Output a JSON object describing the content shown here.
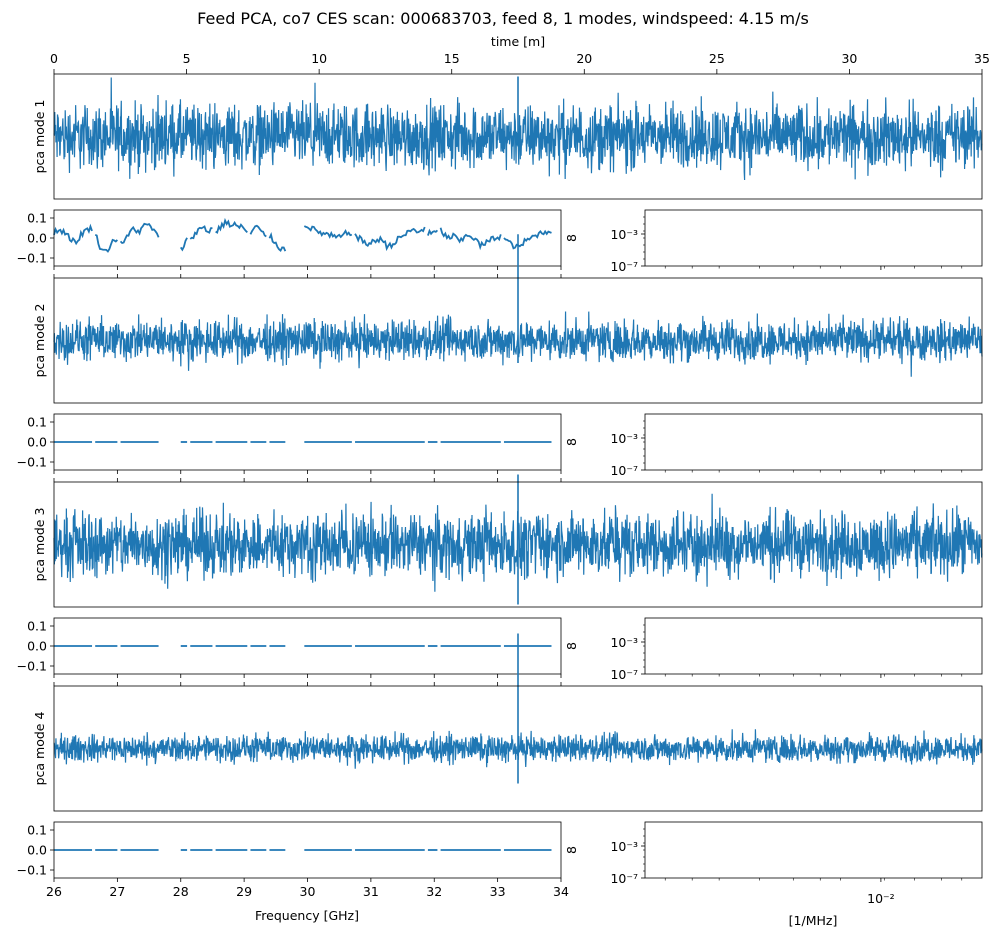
{
  "figure": {
    "title": "Feed PCA, co7 CES scan: 000683703, feed 8, 1 modes, windspeed: 4.15 m/s",
    "time_xlabel": "time [m]",
    "freq_xlabel": "Frequency [GHz]",
    "spec_xlabel": "[1/MHz]",
    "right_label": "8",
    "line_color": "#1f77b4"
  },
  "chart_data": {
    "type": "line",
    "time_axis": {
      "range": [
        0,
        35
      ],
      "ticks": [
        0,
        5,
        10,
        15,
        20,
        25,
        30,
        35
      ],
      "tick_labels": [
        "0",
        "5",
        "10",
        "15",
        "20",
        "25",
        "30",
        "35"
      ]
    },
    "freq_axis": {
      "range": [
        26,
        34
      ],
      "ticks": [
        26,
        27,
        28,
        29,
        30,
        31,
        32,
        33,
        34
      ],
      "tick_labels": [
        "26",
        "27",
        "28",
        "29",
        "30",
        "31",
        "32",
        "33",
        "34"
      ]
    },
    "freq_yaxis": {
      "range": [
        -0.14,
        0.14
      ],
      "ticks": [
        -0.1,
        0.0,
        0.1
      ],
      "tick_labels": [
        "−0.1",
        "0.0",
        "0.1"
      ]
    },
    "spec_axis": {
      "scale": "log",
      "xtick_label": "10⁻²",
      "ytick_labels": [
        "10⁻³",
        "10⁻⁷"
      ]
    },
    "spike_time_min": 17.5,
    "series": [
      {
        "name": "pca mode 1",
        "noise_amp": 0.38,
        "spike_height": 0.48,
        "spike_bottom": -0.08,
        "coef_segments": [
          [
            26.0,
            26.6,
            [
              0.03,
              0.04,
              0.03,
              0.0,
              -0.03,
              0.02,
              0.04,
              0.05
            ]
          ],
          [
            26.65,
            27.0,
            [
              0.02,
              -0.05,
              -0.07,
              -0.02,
              0.0
            ]
          ],
          [
            27.05,
            27.65,
            [
              -0.03,
              0.0,
              0.05,
              0.03,
              0.07,
              0.05,
              0.0
            ]
          ],
          [
            28.0,
            28.1,
            [
              -0.06,
              -0.01
            ]
          ],
          [
            28.15,
            28.5,
            [
              0.0,
              0.02,
              0.04,
              0.06,
              0.03,
              0.05
            ]
          ],
          [
            28.55,
            29.05,
            [
              0.03,
              0.05,
              0.07,
              0.08,
              0.06,
              0.07,
              0.05,
              0.06,
              0.02
            ]
          ],
          [
            29.1,
            29.35,
            [
              0.02,
              0.06,
              0.03,
              0.01
            ]
          ],
          [
            29.4,
            29.65,
            [
              0.01,
              -0.02,
              -0.05,
              -0.06
            ]
          ],
          [
            29.95,
            30.7,
            [
              0.07,
              0.05,
              0.03,
              0.02,
              0.01,
              0.0,
              0.02,
              0.03
            ]
          ],
          [
            30.75,
            31.85,
            [
              0.01,
              -0.01,
              -0.03,
              -0.02,
              0.0,
              -0.04,
              -0.03,
              0.0,
              0.02,
              0.04,
              0.03,
              0.05
            ]
          ],
          [
            31.9,
            32.05,
            [
              0.02,
              0.03
            ]
          ],
          [
            32.1,
            33.05,
            [
              0.04,
              0.0,
              0.01,
              -0.02,
              0.02,
              0.0,
              -0.04,
              -0.02,
              0.0,
              0.01
            ]
          ],
          [
            33.1,
            33.85,
            [
              0.0,
              -0.03,
              -0.05,
              -0.02,
              0.0,
              0.02,
              0.03,
              0.04
            ]
          ]
        ]
      },
      {
        "name": "pca mode 2",
        "noise_amp": 0.24,
        "spike_height": 0.85,
        "spike_bottom": -0.18,
        "coef_segments": [
          [
            26.0,
            26.6,
            [
              0.0,
              0.0
            ]
          ],
          [
            26.65,
            27.0,
            [
              0.0,
              0.0
            ]
          ],
          [
            27.05,
            27.65,
            [
              0.0,
              0.0
            ]
          ],
          [
            28.0,
            28.1,
            [
              0.0,
              0.0
            ]
          ],
          [
            28.15,
            28.5,
            [
              0.0,
              0.0
            ]
          ],
          [
            28.55,
            29.05,
            [
              0.0,
              0.0
            ]
          ],
          [
            29.1,
            29.35,
            [
              0.0,
              0.0
            ]
          ],
          [
            29.4,
            29.65,
            [
              0.0,
              0.0
            ]
          ],
          [
            29.95,
            30.7,
            [
              0.0,
              0.0
            ]
          ],
          [
            30.75,
            31.85,
            [
              0.0,
              0.0
            ]
          ],
          [
            31.9,
            32.05,
            [
              0.0,
              0.0
            ]
          ],
          [
            32.1,
            33.05,
            [
              0.0,
              0.0
            ]
          ],
          [
            33.1,
            33.85,
            [
              0.0,
              0.0
            ]
          ]
        ]
      },
      {
        "name": "pca mode 3",
        "noise_amp": 0.38,
        "spike_height": 0.56,
        "spike_bottom": -0.48,
        "coef_segments": [
          [
            26.0,
            26.6,
            [
              0.0,
              0.0
            ]
          ],
          [
            26.65,
            27.0,
            [
              0.0,
              0.0
            ]
          ],
          [
            27.05,
            27.65,
            [
              0.0,
              0.0
            ]
          ],
          [
            28.0,
            28.1,
            [
              0.0,
              0.0
            ]
          ],
          [
            28.15,
            28.5,
            [
              0.0,
              0.0
            ]
          ],
          [
            28.55,
            29.05,
            [
              0.0,
              0.0
            ]
          ],
          [
            29.1,
            29.35,
            [
              0.0,
              0.0
            ]
          ],
          [
            29.4,
            29.65,
            [
              0.0,
              0.0
            ]
          ],
          [
            29.95,
            30.7,
            [
              0.0,
              0.0
            ]
          ],
          [
            30.75,
            31.85,
            [
              0.0,
              0.0
            ]
          ],
          [
            31.9,
            32.05,
            [
              0.0,
              0.0
            ]
          ],
          [
            32.1,
            33.05,
            [
              0.0,
              0.0
            ]
          ],
          [
            33.1,
            33.85,
            [
              0.0,
              0.0
            ]
          ]
        ]
      },
      {
        "name": "pca mode 4",
        "noise_amp": 0.16,
        "spike_height": 0.92,
        "spike_bottom": -0.28,
        "coef_segments": [
          [
            26.0,
            26.6,
            [
              0.0,
              0.0
            ]
          ],
          [
            26.65,
            27.0,
            [
              0.0,
              0.0
            ]
          ],
          [
            27.05,
            27.65,
            [
              0.0,
              0.0
            ]
          ],
          [
            28.0,
            28.1,
            [
              0.0,
              0.0
            ]
          ],
          [
            28.15,
            28.5,
            [
              0.0,
              0.0
            ]
          ],
          [
            28.55,
            29.05,
            [
              0.0,
              0.0
            ]
          ],
          [
            29.1,
            29.35,
            [
              0.0,
              0.0
            ]
          ],
          [
            29.4,
            29.65,
            [
              0.0,
              0.0
            ]
          ],
          [
            29.95,
            30.7,
            [
              0.0,
              0.0
            ]
          ],
          [
            30.75,
            31.85,
            [
              0.0,
              0.0
            ]
          ],
          [
            31.9,
            32.05,
            [
              0.0,
              0.0
            ]
          ],
          [
            32.1,
            33.05,
            [
              0.0,
              0.0
            ]
          ],
          [
            33.1,
            33.85,
            [
              0.0,
              0.0
            ]
          ]
        ]
      }
    ]
  }
}
